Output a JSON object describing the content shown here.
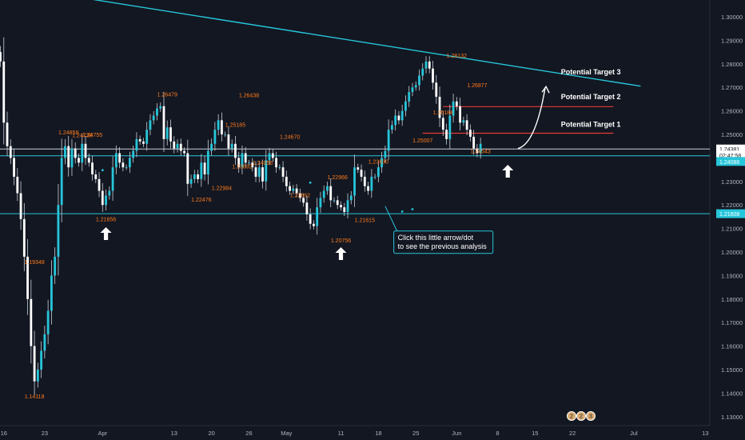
{
  "colors": {
    "background": "#131722",
    "bull": "#26c6da",
    "bear": "#ffffff",
    "wick": "#c8d0d8",
    "trendline": "#26c6da",
    "support": "#26c6da",
    "target_line": "#e53935",
    "swing_label": "#ff7a1a",
    "axis_text": "#b2b5be",
    "tag_dark": "#ffffff",
    "tag_teal": "#26c6da",
    "arrow": "#ffffff"
  },
  "chart_data": {
    "type": "candlestick",
    "title": "",
    "xlabel": "",
    "ylabel": "",
    "ylim": [
      1.125,
      1.305
    ],
    "y_ticks": [
      1.3,
      1.29,
      1.28,
      1.27,
      1.26,
      1.25,
      1.23,
      1.22,
      1.21,
      1.2,
      1.19,
      1.18,
      1.17,
      1.16,
      1.15,
      1.14,
      1.13
    ],
    "x_ticks": [
      {
        "label": "16",
        "i": 1
      },
      {
        "label": "23",
        "i": 13
      },
      {
        "label": "Apr",
        "i": 30
      },
      {
        "label": "13",
        "i": 51
      },
      {
        "label": "20",
        "i": 62
      },
      {
        "label": "26",
        "i": 73
      },
      {
        "label": "May",
        "i": 84
      },
      {
        "label": "11",
        "i": 100
      },
      {
        "label": "18",
        "i": 111
      },
      {
        "label": "25",
        "i": 122
      },
      {
        "label": "Jun",
        "i": 134
      },
      {
        "label": "8",
        "i": 146
      },
      {
        "label": "15",
        "i": 157
      },
      {
        "label": "22",
        "i": 168
      },
      {
        "label": "Jul",
        "i": 186
      },
      {
        "label": "13",
        "i": 207
      }
    ],
    "closes": [
      1.281,
      1.255,
      1.245,
      1.24,
      1.232,
      1.225,
      1.214,
      1.198,
      1.18,
      1.16,
      1.145,
      1.15,
      1.158,
      1.165,
      1.175,
      1.19,
      1.198,
      1.22,
      1.24,
      1.245,
      1.236,
      1.244,
      1.24,
      1.238,
      1.246,
      1.24,
      1.238,
      1.233,
      1.231,
      1.226,
      1.22,
      1.224,
      1.226,
      1.236,
      1.242,
      1.238,
      1.236,
      1.236,
      1.24,
      1.243,
      1.248,
      1.247,
      1.246,
      1.252,
      1.256,
      1.258,
      1.261,
      1.262,
      1.248,
      1.253,
      1.247,
      1.244,
      1.246,
      1.243,
      1.242,
      1.229,
      1.231,
      1.233,
      1.231,
      1.238,
      1.233,
      1.243,
      1.246,
      1.252,
      1.256,
      1.25,
      1.25,
      1.244,
      1.246,
      1.24,
      1.236,
      1.242,
      1.238,
      1.238,
      1.236,
      1.232,
      1.236,
      1.23,
      1.239,
      1.242,
      1.24,
      1.236,
      1.236,
      1.232,
      1.228,
      1.226,
      1.227,
      1.225,
      1.223,
      1.221,
      1.216,
      1.212,
      1.211,
      1.219,
      1.223,
      1.226,
      1.228,
      1.222,
      1.222,
      1.22,
      1.219,
      1.217,
      1.222,
      1.224,
      1.236,
      1.235,
      1.232,
      1.228,
      1.226,
      1.232,
      1.232,
      1.236,
      1.24,
      1.243,
      1.252,
      1.254,
      1.258,
      1.256,
      1.26,
      1.264,
      1.268,
      1.27,
      1.271,
      1.275,
      1.278,
      1.281,
      1.278,
      1.272,
      1.266,
      1.257,
      1.252,
      1.248,
      1.258,
      1.264,
      1.262,
      1.255,
      1.256,
      1.252,
      1.249,
      1.244,
      1.242,
      1.246
    ],
    "events": [
      {
        "i": 30,
        "price": 1.2348
      },
      {
        "i": 91,
        "price": 1.2295
      },
      {
        "i": 118,
        "price": 1.2172
      },
      {
        "i": 121,
        "price": 1.2182
      }
    ],
    "swing_labels": [
      {
        "text": "1.19348",
        "i": 10,
        "price": 1.19348,
        "pos": "above"
      },
      {
        "text": "1.14118",
        "i": 10,
        "price": 1.14118,
        "pos": "below"
      },
      {
        "text": "1.24858",
        "i": 20,
        "price": 1.24858,
        "pos": "above"
      },
      {
        "text": "1.24738",
        "i": 24,
        "price": 1.24738,
        "pos": "above"
      },
      {
        "text": "1.24755",
        "i": 27,
        "price": 1.24755,
        "pos": "above"
      },
      {
        "text": "1.21656",
        "i": 31,
        "price": 1.21656,
        "pos": "below"
      },
      {
        "text": "1.26479",
        "i": 49,
        "price": 1.26479,
        "pos": "above"
      },
      {
        "text": "1.22476",
        "i": 59,
        "price": 1.22476,
        "pos": "below"
      },
      {
        "text": "1.22984",
        "i": 65,
        "price": 1.22984,
        "pos": "below"
      },
      {
        "text": "1.25185",
        "i": 69,
        "price": 1.25185,
        "pos": "above"
      },
      {
        "text": "1.23892",
        "i": 71,
        "price": 1.23892,
        "pos": "below"
      },
      {
        "text": "1.26438",
        "i": 73,
        "price": 1.26438,
        "pos": "above"
      },
      {
        "text": "1.24056",
        "i": 77,
        "price": 1.24056,
        "pos": "below"
      },
      {
        "text": "1.24670",
        "i": 85,
        "price": 1.2467,
        "pos": "above"
      },
      {
        "text": "1.22662",
        "i": 88,
        "price": 1.22662,
        "pos": "below"
      },
      {
        "text": "1.22966",
        "i": 99,
        "price": 1.22966,
        "pos": "above"
      },
      {
        "text": "1.20756",
        "i": 100,
        "price": 1.20756,
        "pos": "below"
      },
      {
        "text": "1.21615",
        "i": 107,
        "price": 1.21615,
        "pos": "below"
      },
      {
        "text": "1.23630",
        "i": 111,
        "price": 1.2363,
        "pos": "above"
      },
      {
        "text": "1.25007",
        "i": 124,
        "price": 1.25007,
        "pos": "below"
      },
      {
        "text": "1.26184",
        "i": 130,
        "price": 1.26184,
        "pos": "below"
      },
      {
        "text": "1.28132",
        "i": 134,
        "price": 1.28132,
        "pos": "above"
      },
      {
        "text": "1.26877",
        "i": 140,
        "price": 1.26877,
        "pos": "above"
      },
      {
        "text": "1.24543",
        "i": 141,
        "price": 1.24543,
        "pos": "below"
      }
    ],
    "trendline": [
      {
        "i": 24,
        "price": 1.3081
      },
      {
        "i": 188,
        "price": 1.2705
      }
    ],
    "support_lines": [
      {
        "price": 1.2163,
        "color_key": "support"
      },
      {
        "price": 1.2438,
        "color_key": "wick"
      },
      {
        "price": 1.2409,
        "color_key": "support"
      }
    ],
    "target_lines": [
      {
        "name": "Potential Target 1",
        "price": 1.2505,
        "from_i": 124,
        "to_i": 180
      },
      {
        "name": "Potential Target 2",
        "price": 1.2618,
        "from_i": 130,
        "to_i": 180
      }
    ],
    "targets_text": [
      {
        "text": "Potential Target 1",
        "i": 164,
        "price": 1.2533
      },
      {
        "text": "Potential Target 2",
        "i": 164,
        "price": 1.265
      },
      {
        "text": "Potential Target 3",
        "i": 164,
        "price": 1.2755
      }
    ],
    "up_arrows": [
      {
        "i": 31,
        "price": 1.2075
      },
      {
        "i": 100,
        "price": 1.199
      },
      {
        "i": 149,
        "price": 1.234
      }
    ],
    "projection_arrow": {
      "from_i": 152,
      "from_price": 1.244,
      "to_i": 160,
      "to_price": 1.27
    },
    "price_tags": [
      {
        "text": "1.24381",
        "price": 1.2438,
        "style": "dark"
      },
      {
        "text": "02:47:58",
        "price": 1.2412,
        "style": "dark"
      },
      {
        "text": "1.24086",
        "price": 1.2385,
        "style": "teal"
      },
      {
        "text": "1.21608",
        "price": 1.2163,
        "style": "teal"
      }
    ],
    "callout": {
      "lines": [
        "Click this little arrow/dot",
        "to see the previous analysis"
      ],
      "anchor_i": 113,
      "anchor_price": 1.2195,
      "box_i": 116,
      "box_price": 1.2045
    },
    "calendar_icons": [
      "2",
      "2",
      "3"
    ]
  }
}
